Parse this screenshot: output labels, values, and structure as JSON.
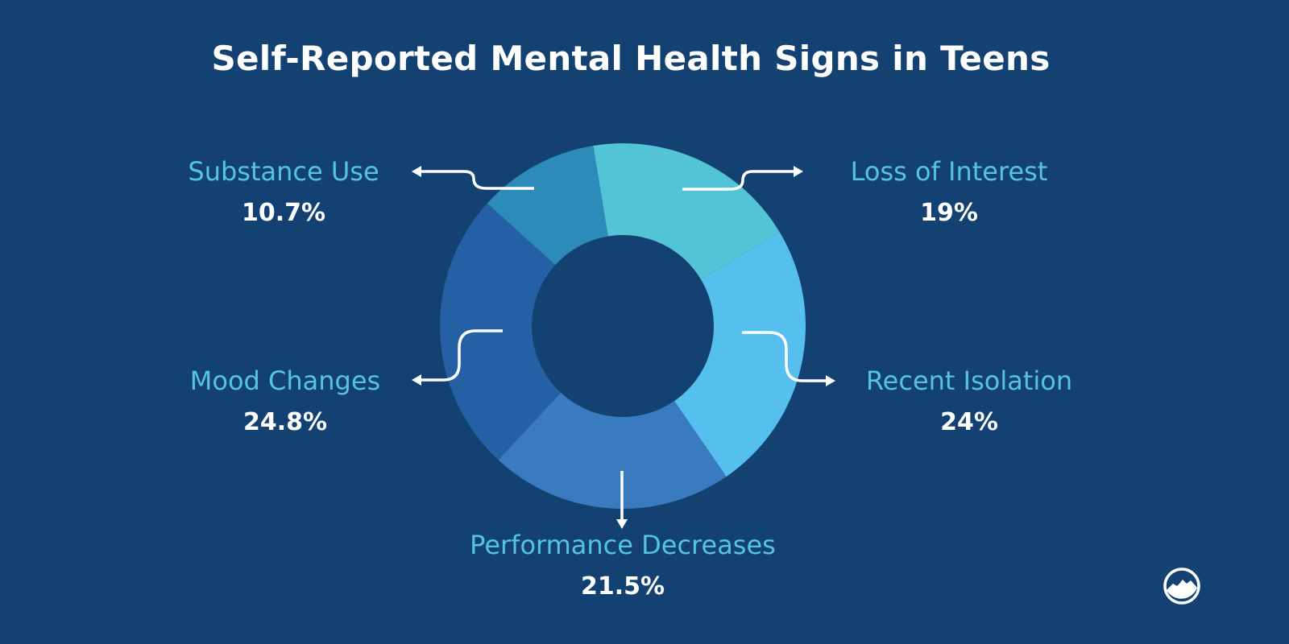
{
  "chart_data": {
    "type": "pie",
    "variant": "donut",
    "title": "Self-Reported Mental Health Signs in Teens",
    "categories": [
      "Loss of Interest",
      "Recent Isolation",
      "Performance Decreases",
      "Mood Changes",
      "Substance Use"
    ],
    "values": [
      19,
      24,
      21.5,
      24.8,
      10.7
    ],
    "value_labels": [
      "19%",
      "24%",
      "21.5%",
      "24.8%",
      "10.7%"
    ],
    "colors": [
      "#53C3D6",
      "#55C0EE",
      "#3A7ABE",
      "#2460A3",
      "#2D8BBA"
    ],
    "legend": "none"
  },
  "colors": {
    "background": "#134272",
    "label": "#55C4DE",
    "value": "#FFFFFF"
  },
  "logo": {
    "icon": "mountain-circle-logo"
  }
}
